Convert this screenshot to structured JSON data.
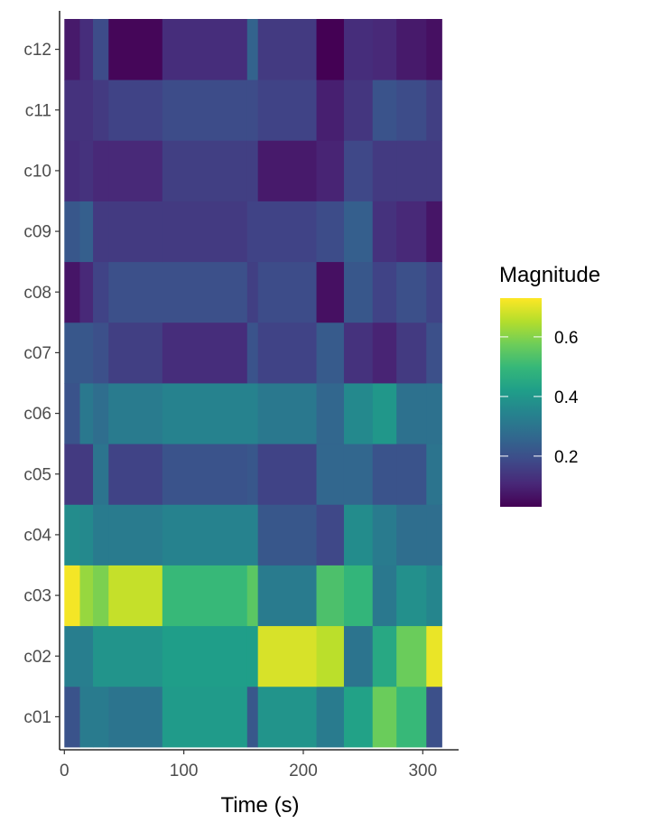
{
  "chart_data": {
    "type": "heatmap",
    "xlabel": "Time (s)",
    "ylabel": "",
    "x_ticks": [
      0,
      100,
      200,
      300
    ],
    "xlim": [
      -4,
      330
    ],
    "y_categories": [
      "c01",
      "c02",
      "c03",
      "c04",
      "c05",
      "c06",
      "c07",
      "c08",
      "c09",
      "c10",
      "c11",
      "c12"
    ],
    "x_bins": [
      {
        "start": 0,
        "end": 13
      },
      {
        "start": 13,
        "end": 24
      },
      {
        "start": 24,
        "end": 37
      },
      {
        "start": 37,
        "end": 82
      },
      {
        "start": 82,
        "end": 153
      },
      {
        "start": 153,
        "end": 162
      },
      {
        "start": 162,
        "end": 211
      },
      {
        "start": 211,
        "end": 234
      },
      {
        "start": 234,
        "end": 258
      },
      {
        "start": 258,
        "end": 278
      },
      {
        "start": 278,
        "end": 303
      },
      {
        "start": 303,
        "end": 316
      }
    ],
    "values": [
      [
        0.21,
        0.32,
        0.32,
        0.3,
        0.41,
        0.22,
        0.39,
        0.32,
        0.43,
        0.57,
        0.5,
        0.2
      ],
      [
        0.33,
        0.33,
        0.39,
        0.39,
        0.42,
        0.42,
        0.69,
        0.66,
        0.3,
        0.45,
        0.57,
        0.71
      ],
      [
        0.72,
        0.62,
        0.59,
        0.67,
        0.5,
        0.55,
        0.32,
        0.53,
        0.49,
        0.31,
        0.38,
        0.35
      ],
      [
        0.37,
        0.36,
        0.32,
        0.32,
        0.34,
        0.34,
        0.22,
        0.18,
        0.37,
        0.32,
        0.28,
        0.28
      ],
      [
        0.15,
        0.15,
        0.3,
        0.17,
        0.21,
        0.22,
        0.17,
        0.26,
        0.26,
        0.21,
        0.21,
        0.3
      ],
      [
        0.21,
        0.31,
        0.28,
        0.32,
        0.34,
        0.34,
        0.31,
        0.26,
        0.36,
        0.4,
        0.29,
        0.29
      ],
      [
        0.22,
        0.22,
        0.2,
        0.16,
        0.12,
        0.21,
        0.17,
        0.23,
        0.13,
        0.1,
        0.15,
        0.2
      ],
      [
        0.07,
        0.11,
        0.17,
        0.2,
        0.2,
        0.16,
        0.19,
        0.06,
        0.22,
        0.17,
        0.2,
        0.17
      ],
      [
        0.22,
        0.24,
        0.15,
        0.15,
        0.15,
        0.17,
        0.17,
        0.19,
        0.24,
        0.13,
        0.11,
        0.07
      ],
      [
        0.12,
        0.13,
        0.11,
        0.11,
        0.16,
        0.16,
        0.08,
        0.1,
        0.18,
        0.15,
        0.15,
        0.15
      ],
      [
        0.13,
        0.13,
        0.15,
        0.17,
        0.19,
        0.19,
        0.17,
        0.09,
        0.14,
        0.21,
        0.19,
        0.16
      ],
      [
        0.08,
        0.12,
        0.19,
        0.04,
        0.12,
        0.25,
        0.15,
        0.02,
        0.12,
        0.11,
        0.08,
        0.06
      ]
    ],
    "legend": {
      "title": "Magnitude",
      "position": "right",
      "min": 0.03,
      "max": 0.73,
      "ticks": [
        0.2,
        0.4,
        0.6
      ],
      "tick_labels": [
        "0.2",
        "0.4",
        "0.6"
      ]
    },
    "colorscale": "viridis",
    "colorscale_stops": [
      "#440154",
      "#482878",
      "#3E4A89",
      "#31688E",
      "#26828E",
      "#1F9E89",
      "#35B779",
      "#6DCD59",
      "#B4DE2C",
      "#FDE725"
    ],
    "grid": false
  }
}
